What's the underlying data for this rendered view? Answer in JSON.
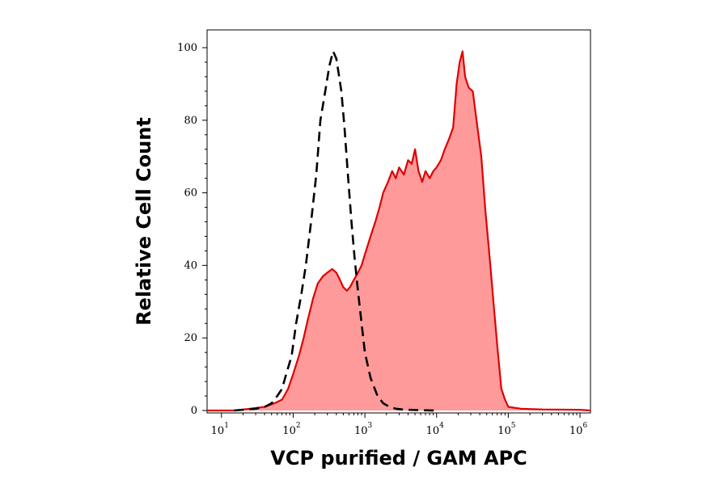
{
  "chart_data": {
    "type": "area",
    "title": "",
    "xlabel": "VCP purified / GAM APC",
    "ylabel": "Relative Cell Count",
    "x_scale": "log",
    "xlim": [
      6.3,
      1400000
    ],
    "ylim": [
      0,
      105
    ],
    "grid": false,
    "y_ticks": [
      0,
      20,
      40,
      60,
      80,
      100
    ],
    "x_ticks": [
      {
        "value": 10,
        "base": "10",
        "exp": "1"
      },
      {
        "value": 100,
        "base": "10",
        "exp": "2"
      },
      {
        "value": 1000,
        "base": "10",
        "exp": "3"
      },
      {
        "value": 10000,
        "base": "10",
        "exp": "4"
      },
      {
        "value": 100000,
        "base": "10",
        "exp": "5"
      },
      {
        "value": 1000000,
        "base": "10",
        "exp": "6"
      }
    ],
    "series": [
      {
        "style": "dashed-line",
        "color": "#000000",
        "x": [
          15,
          30,
          40,
          50,
          60,
          70,
          80,
          95,
          110,
          130,
          150,
          180,
          210,
          240,
          280,
          320,
          360,
          400,
          430,
          470,
          520,
          580,
          650,
          720,
          800,
          900,
          1000,
          1200,
          1500,
          1800,
          2200,
          2700,
          3300,
          4000,
          6000,
          10000
        ],
        "y": [
          0,
          0.5,
          1,
          2,
          4,
          6,
          10,
          15,
          24,
          32,
          40,
          53,
          65,
          80,
          88,
          95,
          99,
          97,
          93,
          88,
          78,
          65,
          52,
          42,
          33,
          24,
          16,
          9,
          4,
          2,
          1,
          0.5,
          0.3,
          0.2,
          0.1,
          0
        ]
      },
      {
        "style": "filled-area",
        "color": "#e00000",
        "fill": "#ff9a9a",
        "x": [
          6.3,
          15,
          25,
          40,
          55,
          70,
          85,
          100,
          120,
          140,
          160,
          190,
          220,
          260,
          300,
          350,
          400,
          450,
          500,
          560,
          620,
          700,
          800,
          900,
          1000,
          1200,
          1400,
          1600,
          1800,
          2100,
          2400,
          2700,
          3000,
          3500,
          4000,
          4500,
          5000,
          5600,
          6300,
          7000,
          8000,
          9000,
          10000,
          11500,
          13000,
          15000,
          17000,
          19000,
          21000,
          23000,
          25000,
          28000,
          32000,
          36000,
          42000,
          48000,
          55000,
          62000,
          70000,
          80000,
          90000,
          100000,
          150000,
          300000,
          1000000,
          1400000
        ],
        "y": [
          0,
          0,
          0.5,
          1,
          2,
          3,
          6,
          10,
          15,
          20,
          25,
          31,
          35,
          37,
          38,
          39,
          38,
          36,
          34,
          33,
          34,
          36,
          38,
          40,
          43,
          48,
          52,
          56,
          60,
          63,
          66,
          64,
          67,
          65,
          69,
          68,
          72,
          66,
          63,
          66,
          64,
          66,
          67,
          69,
          72,
          75,
          78,
          90,
          96,
          99,
          92,
          89,
          88,
          80,
          70,
          55,
          42,
          30,
          18,
          6,
          3,
          1,
          0.5,
          0.3,
          0.2,
          0
        ]
      }
    ]
  }
}
